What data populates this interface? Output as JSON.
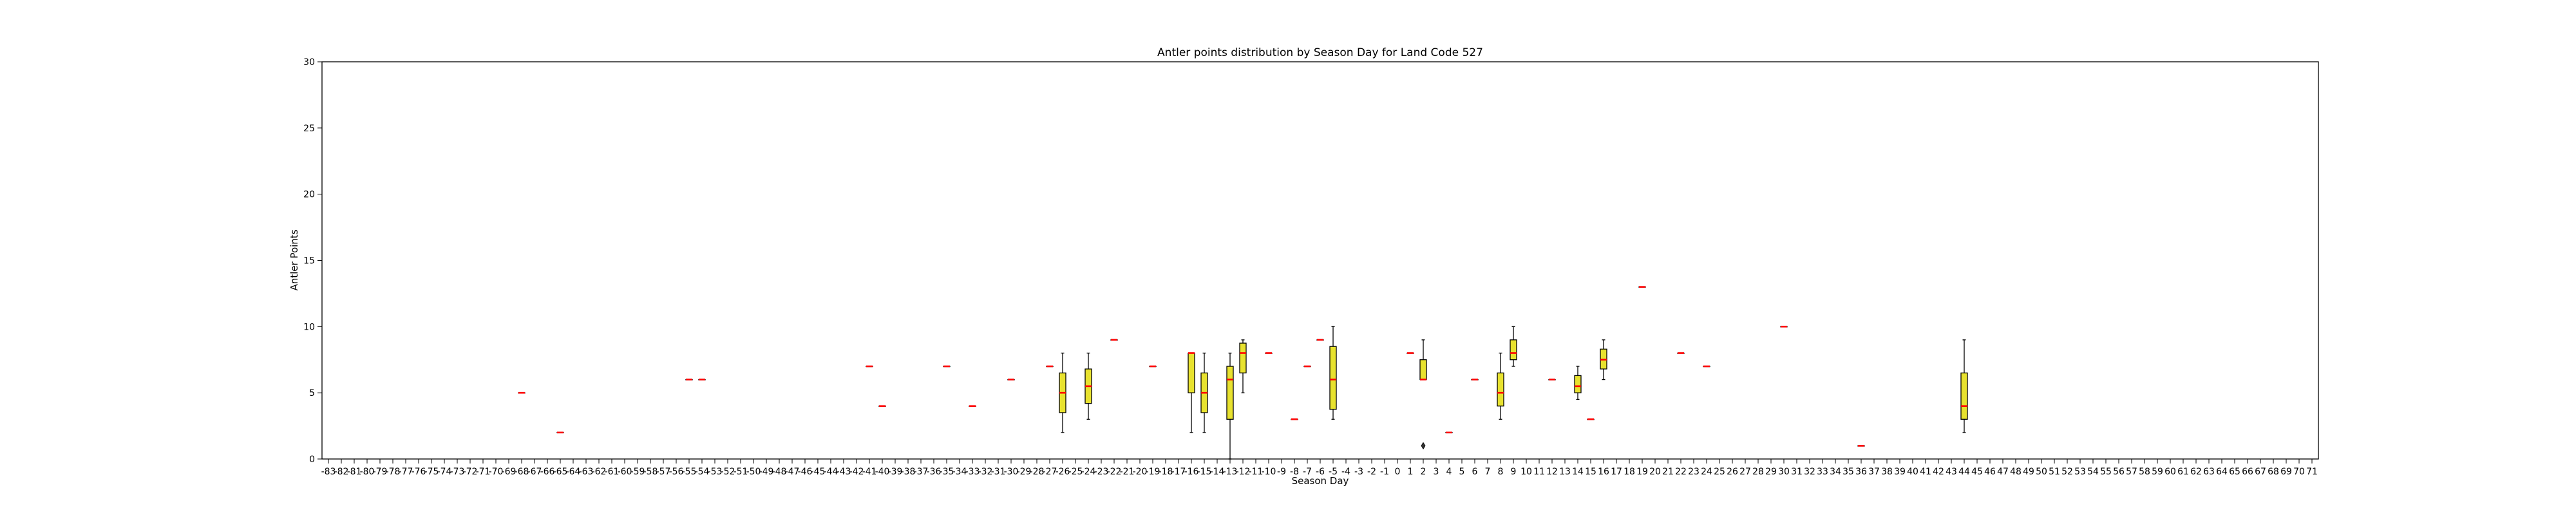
{
  "chart_data": {
    "type": "boxplot",
    "title": "Antler points distribution by Season Day for Land Code 527",
    "xlabel": "Season Day",
    "ylabel": "Antler Points",
    "ylim": [
      0,
      30
    ],
    "yticks": [
      0,
      5,
      10,
      15,
      20,
      25,
      30
    ],
    "grid": false,
    "categories": [
      "-83",
      "-82",
      "-81",
      "-80",
      "-79",
      "-78",
      "-77",
      "-76",
      "-75",
      "-74",
      "-73",
      "-72",
      "-71",
      "-70",
      "-69",
      "-68",
      "-67",
      "-66",
      "-65",
      "-64",
      "-63",
      "-62",
      "-61",
      "-60",
      "-59",
      "-58",
      "-57",
      "-56",
      "-55",
      "-54",
      "-53",
      "-52",
      "-51",
      "-50",
      "-49",
      "-48",
      "-47",
      "-46",
      "-45",
      "-44",
      "-43",
      "-42",
      "-41",
      "-40",
      "-39",
      "-38",
      "-37",
      "-36",
      "-35",
      "-34",
      "-33",
      "-32",
      "-31",
      "-30",
      "-29",
      "-28",
      "-27",
      "-26",
      "-25",
      "-24",
      "-23",
      "-22",
      "-21",
      "-20",
      "-19",
      "-18",
      "-17",
      "-16",
      "-15",
      "-14",
      "-13",
      "-12",
      "-11",
      "-10",
      "-9",
      "-8",
      "-7",
      "-6",
      "-5",
      "-4",
      "-3",
      "-2",
      "-1",
      "0",
      "1",
      "2",
      "3",
      "4",
      "5",
      "6",
      "7",
      "8",
      "9",
      "10",
      "11",
      "12",
      "13",
      "14",
      "15",
      "16",
      "17",
      "18",
      "19",
      "20",
      "21",
      "22",
      "23",
      "24",
      "25",
      "26",
      "27",
      "28",
      "29",
      "30",
      "31",
      "32",
      "33",
      "34",
      "35",
      "36",
      "37",
      "38",
      "39",
      "40",
      "41",
      "42",
      "43",
      "44",
      "45",
      "46",
      "47",
      "48",
      "49",
      "50",
      "51",
      "52",
      "53",
      "54",
      "55",
      "56",
      "57",
      "58",
      "59",
      "60",
      "61",
      "62",
      "63",
      "64",
      "65",
      "66",
      "67",
      "68",
      "69",
      "70",
      "71"
    ],
    "colors": {
      "box_fill": "#e8e22f",
      "median": "#ff0000",
      "outline": "#000000"
    },
    "boxes": [
      {
        "x": -68,
        "whislo": 5,
        "q1": 5,
        "med": 5,
        "q3": 5,
        "whishi": 5,
        "fliers": []
      },
      {
        "x": -65,
        "whislo": 2,
        "q1": 2,
        "med": 2,
        "q3": 2,
        "whishi": 2,
        "fliers": []
      },
      {
        "x": -55,
        "whislo": 6,
        "q1": 6,
        "med": 6,
        "q3": 6,
        "whishi": 6,
        "fliers": []
      },
      {
        "x": -54,
        "whislo": 6,
        "q1": 6,
        "med": 6,
        "q3": 6,
        "whishi": 6,
        "fliers": []
      },
      {
        "x": -41,
        "whislo": 7,
        "q1": 7,
        "med": 7,
        "q3": 7,
        "whishi": 7,
        "fliers": []
      },
      {
        "x": -40,
        "whislo": 4,
        "q1": 4,
        "med": 4,
        "q3": 4,
        "whishi": 4,
        "fliers": []
      },
      {
        "x": -35,
        "whislo": 7,
        "q1": 7,
        "med": 7,
        "q3": 7,
        "whishi": 7,
        "fliers": []
      },
      {
        "x": -33,
        "whislo": 4,
        "q1": 4,
        "med": 4,
        "q3": 4,
        "whishi": 4,
        "fliers": []
      },
      {
        "x": -30,
        "whislo": 6,
        "q1": 6,
        "med": 6,
        "q3": 6,
        "whishi": 6,
        "fliers": []
      },
      {
        "x": -27,
        "whislo": 7,
        "q1": 7,
        "med": 7,
        "q3": 7,
        "whishi": 7,
        "fliers": []
      },
      {
        "x": -26,
        "whislo": 2,
        "q1": 3.5,
        "med": 5,
        "q3": 6.5,
        "whishi": 8,
        "fliers": []
      },
      {
        "x": -24,
        "whislo": 3,
        "q1": 4.2,
        "med": 5.5,
        "q3": 6.8,
        "whishi": 8,
        "fliers": []
      },
      {
        "x": -22,
        "whislo": 9,
        "q1": 9,
        "med": 9,
        "q3": 9,
        "whishi": 9,
        "fliers": []
      },
      {
        "x": -19,
        "whislo": 7,
        "q1": 7,
        "med": 7,
        "q3": 7,
        "whishi": 7,
        "fliers": []
      },
      {
        "x": -16,
        "whislo": 2,
        "q1": 5,
        "med": 8,
        "q3": 8,
        "whishi": 8,
        "fliers": []
      },
      {
        "x": -15,
        "whislo": 2,
        "q1": 3.5,
        "med": 5,
        "q3": 6.5,
        "whishi": 8,
        "fliers": []
      },
      {
        "x": -13,
        "whislo": 0,
        "q1": 3,
        "med": 6,
        "q3": 7,
        "whishi": 8,
        "fliers": []
      },
      {
        "x": -12,
        "whislo": 5,
        "q1": 6.5,
        "med": 8,
        "q3": 8.75,
        "whishi": 9,
        "fliers": []
      },
      {
        "x": -10,
        "whislo": 8,
        "q1": 8,
        "med": 8,
        "q3": 8,
        "whishi": 8,
        "fliers": []
      },
      {
        "x": -8,
        "whislo": 3,
        "q1": 3,
        "med": 3,
        "q3": 3,
        "whishi": 3,
        "fliers": []
      },
      {
        "x": -7,
        "whislo": 7,
        "q1": 7,
        "med": 7,
        "q3": 7,
        "whishi": 7,
        "fliers": []
      },
      {
        "x": -6,
        "whislo": 9,
        "q1": 9,
        "med": 9,
        "q3": 9,
        "whishi": 9,
        "fliers": []
      },
      {
        "x": -5,
        "whislo": 3,
        "q1": 3.75,
        "med": 6,
        "q3": 8.5,
        "whishi": 10,
        "fliers": []
      },
      {
        "x": 1,
        "whislo": 8,
        "q1": 8,
        "med": 8,
        "q3": 8,
        "whishi": 8,
        "fliers": []
      },
      {
        "x": 2,
        "whislo": 6,
        "q1": 6,
        "med": 6,
        "q3": 7.5,
        "whishi": 9,
        "fliers": [
          1
        ]
      },
      {
        "x": 4,
        "whislo": 2,
        "q1": 2,
        "med": 2,
        "q3": 2,
        "whishi": 2,
        "fliers": []
      },
      {
        "x": 6,
        "whislo": 6,
        "q1": 6,
        "med": 6,
        "q3": 6,
        "whishi": 6,
        "fliers": []
      },
      {
        "x": 8,
        "whislo": 3,
        "q1": 4,
        "med": 5,
        "q3": 6.5,
        "whishi": 8,
        "fliers": []
      },
      {
        "x": 9,
        "whislo": 7,
        "q1": 7.5,
        "med": 8,
        "q3": 9,
        "whishi": 10,
        "fliers": []
      },
      {
        "x": 12,
        "whislo": 6,
        "q1": 6,
        "med": 6,
        "q3": 6,
        "whishi": 6,
        "fliers": []
      },
      {
        "x": 14,
        "whislo": 4.5,
        "q1": 5,
        "med": 5.5,
        "q3": 6.3,
        "whishi": 7,
        "fliers": []
      },
      {
        "x": 15,
        "whislo": 3,
        "q1": 3,
        "med": 3,
        "q3": 3,
        "whishi": 3,
        "fliers": []
      },
      {
        "x": 16,
        "whislo": 6,
        "q1": 6.8,
        "med": 7.5,
        "q3": 8.3,
        "whishi": 9,
        "fliers": []
      },
      {
        "x": 19,
        "whislo": 13,
        "q1": 13,
        "med": 13,
        "q3": 13,
        "whishi": 13,
        "fliers": []
      },
      {
        "x": 22,
        "whislo": 8,
        "q1": 8,
        "med": 8,
        "q3": 8,
        "whishi": 8,
        "fliers": []
      },
      {
        "x": 24,
        "whislo": 7,
        "q1": 7,
        "med": 7,
        "q3": 7,
        "whishi": 7,
        "fliers": []
      },
      {
        "x": 30,
        "whislo": 10,
        "q1": 10,
        "med": 10,
        "q3": 10,
        "whishi": 10,
        "fliers": []
      },
      {
        "x": 36,
        "whislo": 1,
        "q1": 1,
        "med": 1,
        "q3": 1,
        "whishi": 1,
        "fliers": []
      },
      {
        "x": 44,
        "whislo": 2,
        "q1": 3,
        "med": 4,
        "q3": 6.5,
        "whishi": 9,
        "fliers": []
      }
    ]
  }
}
